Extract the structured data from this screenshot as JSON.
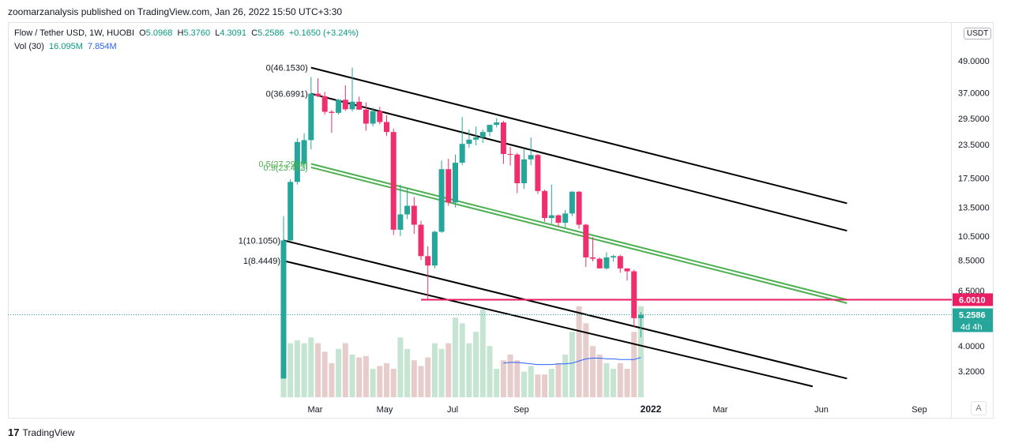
{
  "header": {
    "publisher_line": "zoomarzanalysis published on TradingView.com, Jan 26, 2022 15:50 UTC+3:30"
  },
  "legend": {
    "symbol": "Flow / Tether USD, 1W, HUOBI",
    "o_label": "O",
    "o": "5.0968",
    "h_label": "H",
    "h": "5.3760",
    "l_label": "L",
    "l": "4.3091",
    "c_label": "C",
    "c": "5.2586",
    "change": "+0.1650 (+3.24%)",
    "vol_label": "Vol (30)",
    "vol_value": "16.095M",
    "vol_ma": "7.854M"
  },
  "unit_badge": "USDT",
  "auto_button": "A",
  "footer": {
    "logo": "17",
    "brand": "TradingView"
  },
  "colors": {
    "up": "#26a69a",
    "down": "#ef2e6e",
    "vol_up": "#c5e4d1",
    "vol_down": "#e7cccc",
    "fib_green": "#4caf50",
    "level_line": "#e91e63",
    "vol_ma": "#2962ff"
  },
  "chart_data": {
    "type": "candlestick",
    "title": "Flow / Tether USD, 1W, HUOBI",
    "scale": "log",
    "y_ticks": [
      "49.0000",
      "37.0000",
      "29.5000",
      "23.5000",
      "17.5000",
      "13.5000",
      "10.5000",
      "8.5000",
      "6.5000",
      "4.0000",
      "3.2000"
    ],
    "x_ticks": [
      "Mar",
      "May",
      "Jul",
      "Sep",
      "2022",
      "Mar",
      "Jun",
      "Sep"
    ],
    "price_labels": [
      {
        "text": "6.0010",
        "kind": "level"
      },
      {
        "text": "5.2586",
        "kind": "last"
      },
      {
        "text": "4d 4h",
        "kind": "countdown"
      }
    ],
    "candles": [
      {
        "o": 3.0,
        "h": 12.5,
        "l": 3.0,
        "c": 10.1
      },
      {
        "o": 10.1,
        "h": 17.3,
        "l": 10.0,
        "c": 16.9
      },
      {
        "o": 16.9,
        "h": 24.8,
        "l": 16.5,
        "c": 24.0
      },
      {
        "o": 19.8,
        "h": 25.9,
        "l": 18.6,
        "c": 24.4
      },
      {
        "o": 24.4,
        "h": 42.5,
        "l": 22.5,
        "c": 36.7
      },
      {
        "o": 36.7,
        "h": 42.0,
        "l": 35.6,
        "c": 35.9
      },
      {
        "o": 35.9,
        "h": 37.3,
        "l": 30.5,
        "c": 31.3
      },
      {
        "o": 31.3,
        "h": 31.8,
        "l": 26.0,
        "c": 31.0
      },
      {
        "o": 31.0,
        "h": 35.0,
        "l": 30.5,
        "c": 34.8
      },
      {
        "o": 34.8,
        "h": 39.5,
        "l": 31.5,
        "c": 32.0
      },
      {
        "o": 32.0,
        "h": 46.2,
        "l": 31.4,
        "c": 34.2
      },
      {
        "o": 34.2,
        "h": 35.8,
        "l": 31.8,
        "c": 31.9
      },
      {
        "o": 31.9,
        "h": 34.0,
        "l": 26.5,
        "c": 28.2
      },
      {
        "o": 28.2,
        "h": 32.5,
        "l": 27.5,
        "c": 31.5
      },
      {
        "o": 31.5,
        "h": 32.7,
        "l": 28.0,
        "c": 28.6
      },
      {
        "o": 28.6,
        "h": 30.4,
        "l": 25.3,
        "c": 26.2
      },
      {
        "o": 26.2,
        "h": 27.0,
        "l": 10.6,
        "c": 11.1
      },
      {
        "o": 11.1,
        "h": 16.5,
        "l": 10.5,
        "c": 12.7
      },
      {
        "o": 12.7,
        "h": 16.0,
        "l": 12.2,
        "c": 13.7
      },
      {
        "o": 13.7,
        "h": 14.8,
        "l": 10.7,
        "c": 11.6
      },
      {
        "o": 11.6,
        "h": 12.0,
        "l": 8.5,
        "c": 8.8
      },
      {
        "o": 8.8,
        "h": 9.6,
        "l": 6.0,
        "c": 8.1
      },
      {
        "o": 8.1,
        "h": 11.0,
        "l": 7.9,
        "c": 10.9
      },
      {
        "o": 10.9,
        "h": 20.4,
        "l": 10.8,
        "c": 18.9
      },
      {
        "o": 18.9,
        "h": 20.7,
        "l": 13.7,
        "c": 14.1
      },
      {
        "o": 14.1,
        "h": 21.5,
        "l": 13.5,
        "c": 20.0
      },
      {
        "o": 20.0,
        "h": 29.9,
        "l": 19.6,
        "c": 23.6
      },
      {
        "o": 23.6,
        "h": 26.8,
        "l": 22.8,
        "c": 24.5
      },
      {
        "o": 24.5,
        "h": 27.5,
        "l": 23.3,
        "c": 25.0
      },
      {
        "o": 25.0,
        "h": 26.8,
        "l": 23.8,
        "c": 26.2
      },
      {
        "o": 26.2,
        "h": 28.0,
        "l": 25.2,
        "c": 27.9
      },
      {
        "o": 27.9,
        "h": 29.6,
        "l": 27.3,
        "c": 28.5
      },
      {
        "o": 28.5,
        "h": 28.9,
        "l": 19.8,
        "c": 21.6
      },
      {
        "o": 21.6,
        "h": 23.0,
        "l": 19.5,
        "c": 21.5
      },
      {
        "o": 21.5,
        "h": 21.8,
        "l": 15.3,
        "c": 16.7
      },
      {
        "o": 16.7,
        "h": 22.5,
        "l": 15.9,
        "c": 20.6
      },
      {
        "o": 20.6,
        "h": 25.0,
        "l": 19.6,
        "c": 21.4
      },
      {
        "o": 21.4,
        "h": 21.6,
        "l": 15.2,
        "c": 15.6
      },
      {
        "o": 15.6,
        "h": 15.8,
        "l": 11.9,
        "c": 12.3
      },
      {
        "o": 12.3,
        "h": 16.5,
        "l": 11.7,
        "c": 12.6
      },
      {
        "o": 12.6,
        "h": 12.7,
        "l": 11.4,
        "c": 11.8
      },
      {
        "o": 11.8,
        "h": 13.2,
        "l": 11.3,
        "c": 12.8
      },
      {
        "o": 12.8,
        "h": 15.6,
        "l": 12.5,
        "c": 15.5
      },
      {
        "o": 15.5,
        "h": 15.6,
        "l": 11.2,
        "c": 11.6
      },
      {
        "o": 11.6,
        "h": 11.7,
        "l": 8.0,
        "c": 8.7
      },
      {
        "o": 8.7,
        "h": 10.4,
        "l": 8.4,
        "c": 8.6
      },
      {
        "o": 8.6,
        "h": 8.7,
        "l": 7.9,
        "c": 7.9
      },
      {
        "o": 7.9,
        "h": 9.1,
        "l": 7.8,
        "c": 8.7
      },
      {
        "o": 8.7,
        "h": 8.9,
        "l": 8.4,
        "c": 8.8
      },
      {
        "o": 8.8,
        "h": 8.9,
        "l": 7.6,
        "c": 7.9
      },
      {
        "o": 7.9,
        "h": 7.9,
        "l": 7.1,
        "c": 7.7
      },
      {
        "o": 7.7,
        "h": 7.8,
        "l": 4.7,
        "c": 5.1
      },
      {
        "o": 5.0968,
        "h": 5.376,
        "l": 4.3091,
        "c": 5.2586
      }
    ],
    "volume": [
      3.6,
      3.8,
      4.0,
      3.8,
      4.2,
      3.8,
      3.2,
      2.4,
      3.4,
      3.8,
      3.0,
      2.8,
      2.9,
      2.0,
      2.2,
      2.4,
      2.0,
      4.2,
      3.4,
      2.6,
      2.2,
      2.8,
      3.8,
      3.4,
      3.8,
      5.6,
      5.2,
      3.8,
      4.6,
      6.2,
      3.6,
      2.0,
      2.6,
      3.0,
      2.6,
      1.8,
      2.2,
      1.6,
      1.6,
      2.0,
      2.4,
      3.0,
      4.6,
      6.4,
      5.2,
      3.6,
      3.0,
      2.4,
      2.0,
      2.4,
      2.0,
      4.6,
      6.4
    ],
    "volume_ma": [
      null,
      null,
      null,
      null,
      null,
      null,
      null,
      null,
      null,
      null,
      null,
      null,
      null,
      null,
      null,
      null,
      null,
      null,
      null,
      null,
      null,
      null,
      null,
      null,
      null,
      null,
      null,
      null,
      null,
      null,
      null,
      null,
      2.4,
      2.45,
      2.45,
      2.4,
      2.35,
      2.3,
      2.3,
      2.3,
      2.35,
      2.35,
      2.4,
      2.55,
      2.7,
      2.75,
      2.75,
      2.7,
      2.7,
      2.65,
      2.65,
      2.65,
      2.8
    ],
    "drawings": {
      "upper_channel": [
        {
          "label": "0(46.1530)",
          "p1": {
            "i": 4,
            "price": 46.153
          },
          "p2": {
            "i": 82,
            "price": 14.0
          }
        },
        {
          "label": "0(36.6991)",
          "p1": {
            "i": 4,
            "price": 36.6991
          },
          "p2": {
            "i": 82,
            "price": 11.0
          }
        }
      ],
      "fib_mid": [
        {
          "label": "0.5(27.2989)",
          "p1": {
            "i": 4,
            "price": 19.8
          },
          "p2": {
            "i": 82,
            "price": 6.0
          }
        },
        {
          "label": "0.5(23.402)",
          "p1": {
            "i": 4,
            "price": 19.2
          },
          "p2": {
            "i": 82,
            "price": 5.82
          }
        }
      ],
      "lower_channel": [
        {
          "label": "1(10.1050)",
          "p1": {
            "i": 0,
            "price": 10.105
          },
          "p2": {
            "i": 82,
            "price": 3.0
          }
        },
        {
          "label": "1(8.4449)",
          "p1": {
            "i": 0,
            "price": 8.4449
          },
          "p2": {
            "i": 77,
            "price": 2.8
          }
        }
      ],
      "horizontal_level": {
        "price": 6.001,
        "from_i": 20
      }
    }
  }
}
